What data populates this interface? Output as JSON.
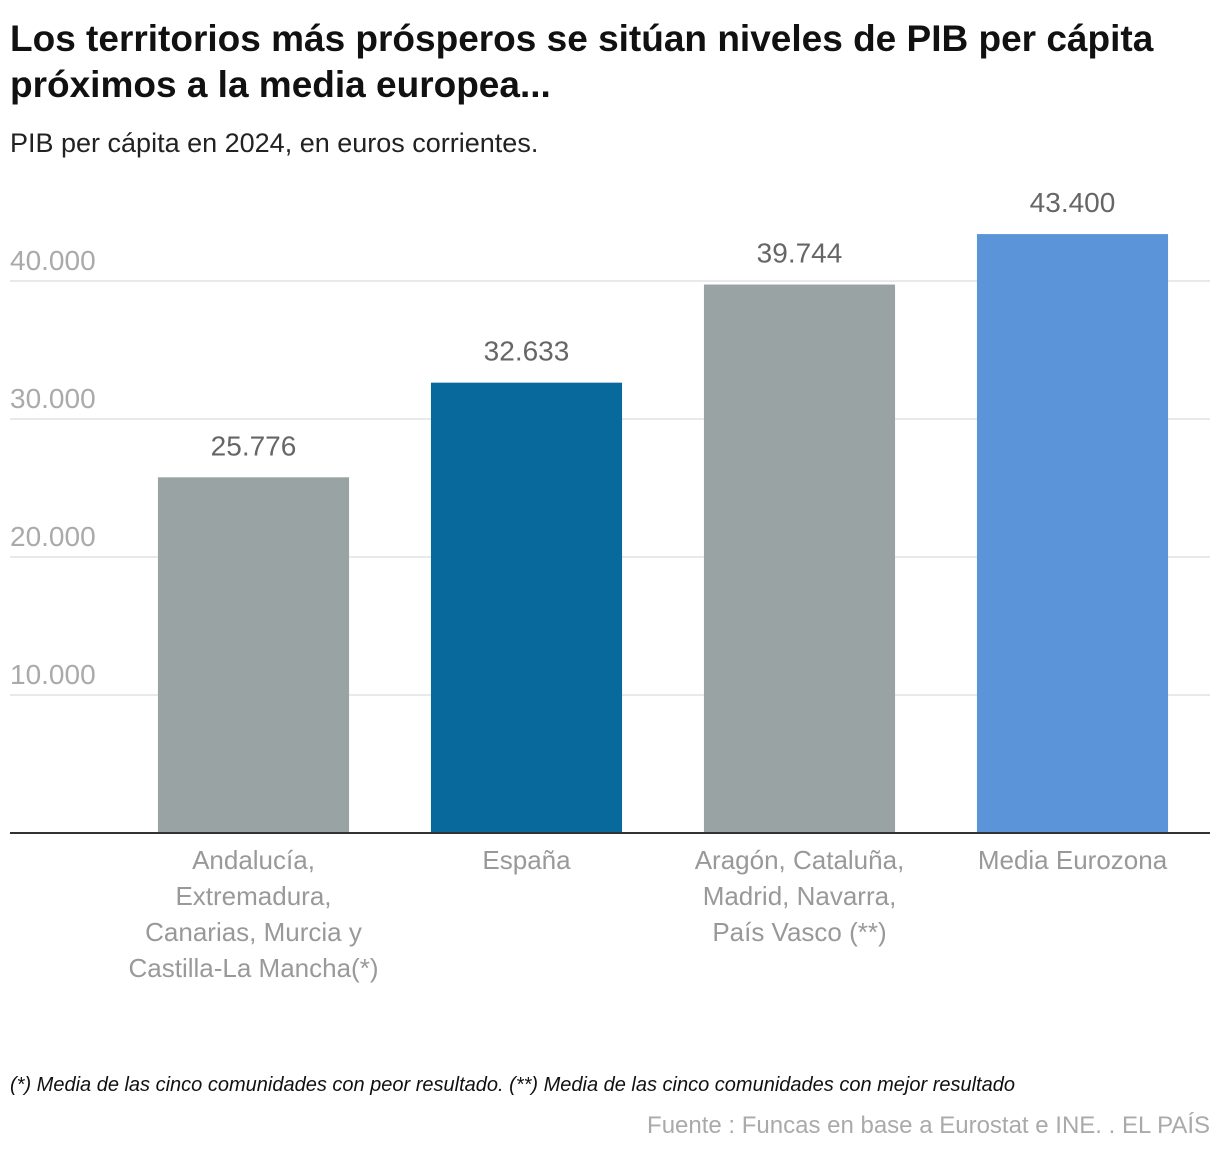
{
  "chart_data": {
    "type": "bar",
    "title": "Los territorios más prósperos se sitúan niveles de PIB per cápita próximos a la media europea...",
    "subtitle": "PIB per cápita en 2024, en euros corrientes.",
    "categories": [
      "Andalucía, Extremadura, Canarias, Murcia y Castilla-La Mancha(*)",
      "España",
      "Aragón, Cataluña, Madrid, Navarra, País Vasco (**)",
      "Media Eurozona"
    ],
    "values": [
      25776,
      32633,
      39744,
      43400
    ],
    "value_labels": [
      "25.776",
      "32.633",
      "39.744",
      "43.400"
    ],
    "colors": [
      "#9aa3a3",
      "#086a9c",
      "#9aa3a3",
      "#5b94d9"
    ],
    "ylim": [
      0,
      45000
    ],
    "yticks": [
      {
        "value": 10000,
        "label": "10.000"
      },
      {
        "value": 20000,
        "label": "20.000"
      },
      {
        "value": 30000,
        "label": "30.000"
      },
      {
        "value": 40000,
        "label": "40.000"
      }
    ],
    "grid": true,
    "note": "(*) Media de las cinco comunidades con peor resultado. (**) Media de las cinco comunidades con mejor resultado",
    "source": "Fuente : Funcas en base a Eurostat e INE. . EL PAÍS"
  }
}
